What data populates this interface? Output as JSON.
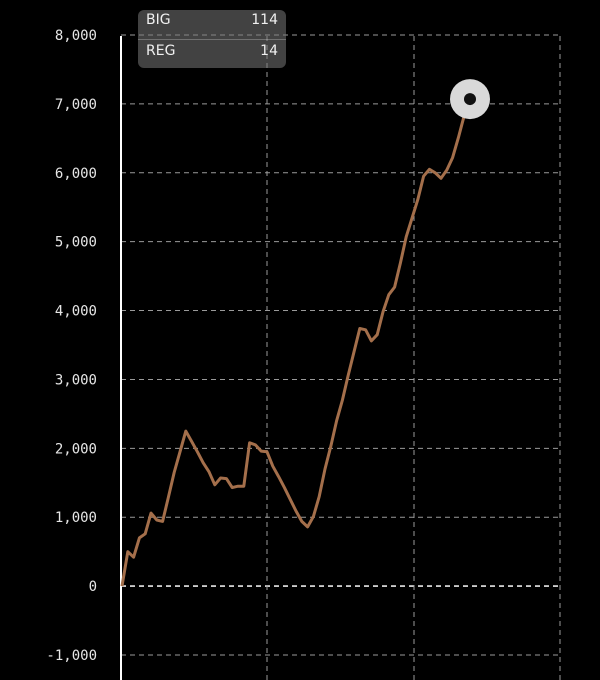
{
  "chart_data": {
    "type": "line",
    "y_ticks": [
      8000,
      7000,
      6000,
      5000,
      4000,
      3000,
      2000,
      1000,
      0,
      -1000
    ],
    "y_tick_labels": [
      "8,000",
      "7,000",
      "6,000",
      "5,000",
      "4,000",
      "3,000",
      "2,000",
      "1,000",
      "0",
      "-1,000"
    ],
    "ylim": [
      -1000,
      8000
    ],
    "grid": true,
    "series": [
      {
        "color": "#a46f4b",
        "values": [
          0,
          500,
          420,
          700,
          760,
          1060,
          960,
          940,
          1290,
          1650,
          1950,
          2250,
          2100,
          1950,
          1790,
          1660,
          1470,
          1570,
          1560,
          1430,
          1450,
          1450,
          2080,
          2050,
          1960,
          1950,
          1740,
          1590,
          1430,
          1260,
          1090,
          940,
          860,
          1010,
          1300,
          1700,
          2030,
          2400,
          2700,
          3060,
          3400,
          3740,
          3720,
          3560,
          3650,
          3980,
          4230,
          4340,
          4690,
          5070,
          5340,
          5610,
          5950,
          6050,
          6000,
          5920,
          6040,
          6220,
          6510,
          6830,
          7070
        ]
      }
    ],
    "end_marker": true,
    "legend": [
      {
        "label": "BIG",
        "value": "114"
      },
      {
        "label": "REG",
        "value": "14"
      }
    ],
    "legend_placement": "top-left"
  }
}
